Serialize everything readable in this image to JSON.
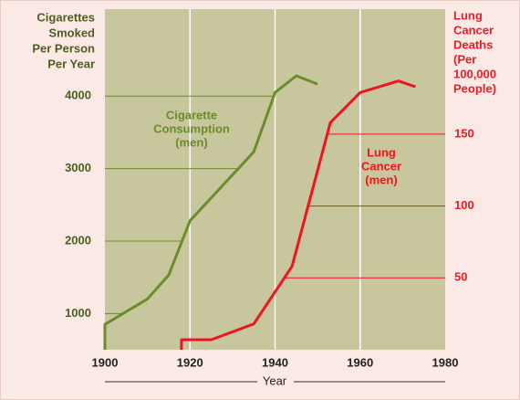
{
  "chart_data": {
    "type": "line",
    "xlabel": "Year",
    "ylabel": [
      "Cigarettes",
      "Smoked",
      "Per Person",
      "Per Year"
    ],
    "y2label": [
      "Lung",
      "Cancer",
      "Deaths",
      "(Per",
      "100,000",
      "People)"
    ],
    "xlim": [
      1900,
      1980
    ],
    "xticks": [
      1900,
      1920,
      1940,
      1960,
      1980
    ],
    "ylim": [
      500,
      5200
    ],
    "yticks": [
      1000,
      2000,
      3000,
      4000
    ],
    "y2lim": [
      0,
      237
    ],
    "y2ticks": [
      50,
      100,
      150
    ],
    "series": [
      {
        "label": [
          "Cigarette",
          "Consumption",
          "(men)"
        ],
        "color": "#6b8c2a",
        "axis": "y",
        "x": [
          1900,
          1900,
          1910,
          1915,
          1920,
          1935,
          1940,
          1945,
          1950
        ],
        "values": [
          500,
          850,
          1200,
          1530,
          2280,
          3230,
          4050,
          4280,
          4165
        ]
      },
      {
        "label": [
          "Lung",
          "Cancer",
          "(men)"
        ],
        "color": "#f0141e",
        "axis": "y2",
        "x": [
          1918,
          1918,
          1925,
          1935,
          1944,
          1953,
          1960,
          1969,
          1973
        ],
        "values": [
          0,
          7,
          7,
          18,
          58,
          158,
          179,
          187,
          183
        ]
      }
    ]
  }
}
